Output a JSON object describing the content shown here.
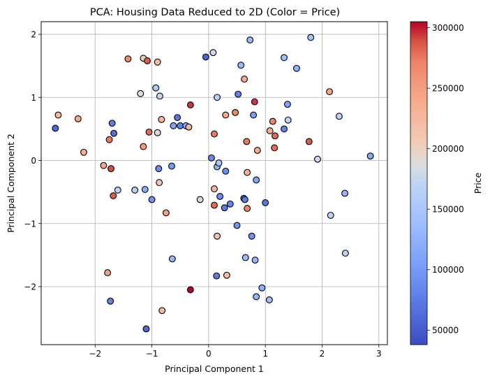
{
  "chart_data": {
    "type": "scatter",
    "title": "PCA: Housing Data Reduced to 2D (Color = Price)",
    "xlabel": "Principal Component 1",
    "ylabel": "Principal Component 2",
    "xlim": [
      -2.95,
      3.15
    ],
    "ylim": [
      -2.92,
      2.2
    ],
    "xticks": [
      -2,
      -1,
      0,
      1,
      2,
      3
    ],
    "yticks": [
      -2,
      -1,
      0,
      1,
      2
    ],
    "xtick_labels": [
      "−2",
      "−1",
      "0",
      "1",
      "2",
      "3"
    ],
    "ytick_labels": [
      "−2",
      "−1",
      "0",
      "1",
      "2"
    ],
    "grid": true,
    "colormap": "coolwarm",
    "colorbar": {
      "label": "Price",
      "min": 38000,
      "max": 305000,
      "ticks": [
        50000,
        100000,
        150000,
        200000,
        250000,
        300000
      ],
      "tick_labels": [
        "50000",
        "100000",
        "150000",
        "200000",
        "250000",
        "300000"
      ]
    },
    "points": [
      {
        "x": -2.7,
        "y": 0.51,
        "price": 60000
      },
      {
        "x": -2.65,
        "y": 0.72,
        "price": 225000
      },
      {
        "x": -2.3,
        "y": 0.66,
        "price": 240000
      },
      {
        "x": -2.2,
        "y": 0.13,
        "price": 235000
      },
      {
        "x": -1.85,
        "y": -0.08,
        "price": 245000
      },
      {
        "x": -1.78,
        "y": -1.78,
        "price": 250000
      },
      {
        "x": -1.75,
        "y": 0.33,
        "price": 275000
      },
      {
        "x": -1.72,
        "y": -0.13,
        "price": 290000
      },
      {
        "x": -1.7,
        "y": 0.59,
        "price": 75000
      },
      {
        "x": -1.68,
        "y": -0.56,
        "price": 285000
      },
      {
        "x": -1.67,
        "y": 0.43,
        "price": 65000
      },
      {
        "x": -1.6,
        "y": -0.47,
        "price": 170000
      },
      {
        "x": -1.73,
        "y": -2.23,
        "price": 80000
      },
      {
        "x": -1.42,
        "y": 1.61,
        "price": 265000
      },
      {
        "x": -1.3,
        "y": -0.47,
        "price": 165000
      },
      {
        "x": -1.2,
        "y": 1.06,
        "price": 185000
      },
      {
        "x": -1.15,
        "y": 1.62,
        "price": 205000
      },
      {
        "x": -1.15,
        "y": 0.22,
        "price": 250000
      },
      {
        "x": -1.12,
        "y": -0.46,
        "price": 120000
      },
      {
        "x": -1.1,
        "y": -2.67,
        "price": 60000
      },
      {
        "x": -1.08,
        "y": 1.58,
        "price": 285000
      },
      {
        "x": -1.05,
        "y": 0.45,
        "price": 280000
      },
      {
        "x": -1.0,
        "y": -0.62,
        "price": 95000
      },
      {
        "x": -0.93,
        "y": 1.15,
        "price": 155000
      },
      {
        "x": -0.9,
        "y": 1.56,
        "price": 220000
      },
      {
        "x": -0.9,
        "y": 0.44,
        "price": 185000
      },
      {
        "x": -0.86,
        "y": 1.02,
        "price": 175000
      },
      {
        "x": -0.88,
        "y": -0.13,
        "price": 90000
      },
      {
        "x": -0.87,
        "y": -0.35,
        "price": 210000
      },
      {
        "x": -0.83,
        "y": 0.65,
        "price": 230000
      },
      {
        "x": -0.82,
        "y": -2.38,
        "price": 225000
      },
      {
        "x": -0.75,
        "y": -0.83,
        "price": 250000
      },
      {
        "x": -0.65,
        "y": -0.09,
        "price": 100000
      },
      {
        "x": -0.62,
        "y": 0.55,
        "price": 110000
      },
      {
        "x": -0.64,
        "y": -1.56,
        "price": 130000
      },
      {
        "x": -0.55,
        "y": 0.68,
        "price": 70000
      },
      {
        "x": -0.5,
        "y": 0.55,
        "price": 80000
      },
      {
        "x": -0.4,
        "y": 0.55,
        "price": 120000
      },
      {
        "x": -0.35,
        "y": 0.53,
        "price": 225000
      },
      {
        "x": -0.32,
        "y": 0.88,
        "price": 295000
      },
      {
        "x": -0.32,
        "y": -2.05,
        "price": 305000
      },
      {
        "x": -0.15,
        "y": -0.62,
        "price": 180000
      },
      {
        "x": -0.05,
        "y": 1.64,
        "price": 55000
      },
      {
        "x": 0.05,
        "y": 0.04,
        "price": 85000
      },
      {
        "x": 0.08,
        "y": 1.71,
        "price": 180000
      },
      {
        "x": 0.1,
        "y": 0.42,
        "price": 275000
      },
      {
        "x": 0.1,
        "y": -0.45,
        "price": 230000
      },
      {
        "x": 0.1,
        "y": -0.71,
        "price": 280000
      },
      {
        "x": 0.15,
        "y": -0.1,
        "price": 125000
      },
      {
        "x": 0.15,
        "y": 1.0,
        "price": 165000
      },
      {
        "x": 0.15,
        "y": -1.2,
        "price": 210000
      },
      {
        "x": 0.18,
        "y": -0.04,
        "price": 150000
      },
      {
        "x": 0.2,
        "y": -0.57,
        "price": 90000
      },
      {
        "x": 0.14,
        "y": -1.83,
        "price": 75000
      },
      {
        "x": 0.28,
        "y": -0.75,
        "price": 75000
      },
      {
        "x": 0.3,
        "y": -0.17,
        "price": 90000
      },
      {
        "x": 0.3,
        "y": 0.72,
        "price": 240000
      },
      {
        "x": 0.32,
        "y": -1.82,
        "price": 220000
      },
      {
        "x": 0.38,
        "y": -0.69,
        "price": 85000
      },
      {
        "x": 0.47,
        "y": 0.76,
        "price": 270000
      },
      {
        "x": 0.5,
        "y": -1.03,
        "price": 95000
      },
      {
        "x": 0.52,
        "y": 1.05,
        "price": 80000
      },
      {
        "x": 0.57,
        "y": 1.51,
        "price": 135000
      },
      {
        "x": 0.62,
        "y": -0.6,
        "price": 60000
      },
      {
        "x": 0.64,
        "y": -0.62,
        "price": 75000
      },
      {
        "x": 0.63,
        "y": 1.29,
        "price": 240000
      },
      {
        "x": 0.65,
        "y": -1.54,
        "price": 135000
      },
      {
        "x": 0.67,
        "y": 0.3,
        "price": 275000
      },
      {
        "x": 0.68,
        "y": -0.19,
        "price": 235000
      },
      {
        "x": 0.68,
        "y": -0.76,
        "price": 270000
      },
      {
        "x": 0.73,
        "y": 1.91,
        "price": 135000
      },
      {
        "x": 0.76,
        "y": -1.2,
        "price": 95000
      },
      {
        "x": 0.79,
        "y": 0.72,
        "price": 105000
      },
      {
        "x": 0.81,
        "y": 0.93,
        "price": 295000
      },
      {
        "x": 0.82,
        "y": -1.58,
        "price": 130000
      },
      {
        "x": 0.84,
        "y": -0.31,
        "price": 110000
      },
      {
        "x": 0.86,
        "y": 0.16,
        "price": 240000
      },
      {
        "x": 0.84,
        "y": -2.16,
        "price": 130000
      },
      {
        "x": 0.94,
        "y": -2.02,
        "price": 125000
      },
      {
        "x": 1.0,
        "y": -0.67,
        "price": 70000
      },
      {
        "x": 1.07,
        "y": -2.21,
        "price": 140000
      },
      {
        "x": 1.08,
        "y": 0.47,
        "price": 235000
      },
      {
        "x": 1.13,
        "y": 0.62,
        "price": 270000
      },
      {
        "x": 1.17,
        "y": 0.39,
        "price": 280000
      },
      {
        "x": 1.16,
        "y": 0.2,
        "price": 280000
      },
      {
        "x": 1.33,
        "y": 1.63,
        "price": 140000
      },
      {
        "x": 1.33,
        "y": 0.5,
        "price": 80000
      },
      {
        "x": 1.39,
        "y": 0.89,
        "price": 110000
      },
      {
        "x": 1.4,
        "y": 0.64,
        "price": 170000
      },
      {
        "x": 1.55,
        "y": 1.46,
        "price": 125000
      },
      {
        "x": 1.77,
        "y": 0.3,
        "price": 285000
      },
      {
        "x": 1.8,
        "y": 1.95,
        "price": 145000
      },
      {
        "x": 1.92,
        "y": 0.02,
        "price": 180000
      },
      {
        "x": 2.13,
        "y": 1.09,
        "price": 245000
      },
      {
        "x": 2.15,
        "y": -0.87,
        "price": 170000
      },
      {
        "x": 2.3,
        "y": 0.7,
        "price": 165000
      },
      {
        "x": 2.4,
        "y": -0.52,
        "price": 130000
      },
      {
        "x": 2.41,
        "y": -1.47,
        "price": 165000
      },
      {
        "x": 2.85,
        "y": 0.07,
        "price": 115000
      }
    ]
  }
}
